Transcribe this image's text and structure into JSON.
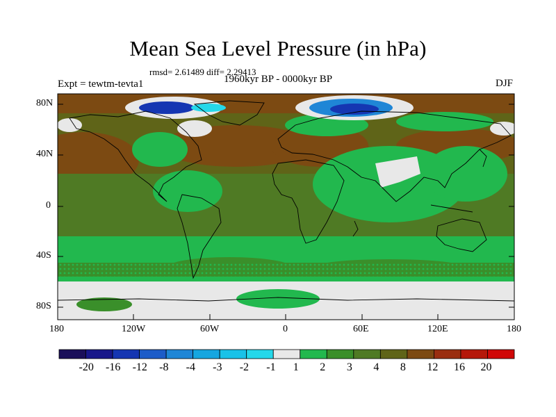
{
  "title": "Mean Sea Level Pressure (in hPa)",
  "stats_text": "rmsd= 2.61489 diff= 2.29413",
  "period_text": "1960kyr BP - 0000kyr BP",
  "experiment_text": "Expt = tewtm-tevta1",
  "season_text": "DJF",
  "lat_ticks": [
    "80N",
    "40N",
    "0",
    "40S",
    "80S"
  ],
  "lon_ticks": [
    "180",
    "120W",
    "60W",
    "0",
    "60E",
    "120E",
    "180"
  ],
  "colorbar": {
    "labels": [
      "-20",
      "-16",
      "-12",
      "-8",
      "-4",
      "-3",
      "-2",
      "-1",
      "1",
      "2",
      "3",
      "4",
      "8",
      "12",
      "16",
      "20"
    ],
    "colors": [
      "#1a0f5a",
      "#18178a",
      "#1536b2",
      "#1d5cc8",
      "#1f86d6",
      "#16a6e0",
      "#19c2e8",
      "#25d8ea",
      "#e8e8e8",
      "#22b84e",
      "#3a8f2a",
      "#4f7a24",
      "#5f6418",
      "#7c4a12",
      "#9a2e10",
      "#b5170a",
      "#d00808"
    ]
  },
  "map_colors": {
    "land_outline": "#000000",
    "green_light": "#22b84e",
    "green_mid": "#3a8f2a",
    "green_dark": "#4f7a24",
    "olive": "#5f6418",
    "brown": "#7c4a12",
    "white": "#e8e8e8",
    "blue_dark": "#1536b2",
    "blue_mid": "#1f86d6",
    "cyan": "#25d8ea"
  }
}
